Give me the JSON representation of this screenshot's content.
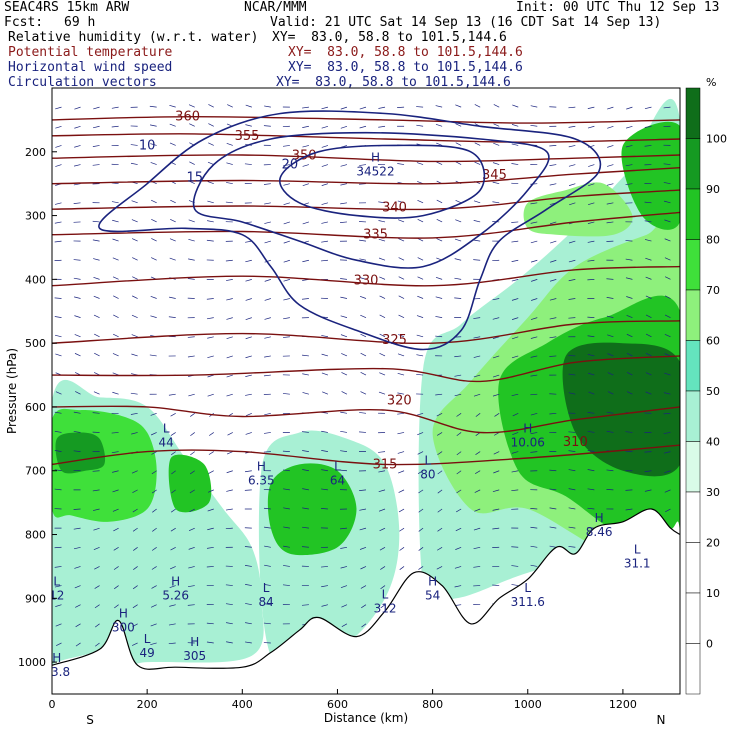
{
  "header": {
    "model": "SEAC4RS 15km ARW",
    "org": "NCAR/MMM",
    "init": "Init: 00 UTC Thu 12 Sep 13",
    "fcst_label": "Fcst:",
    "fcst_value": "69 h",
    "valid": "Valid: 21 UTC Sat 14 Sep 13 (16 CDT Sat 14 Sep 13)",
    "fields": [
      {
        "name": "Relative humidity (w.r.t. water)",
        "xy": "XY=  83.0, 58.8 to 101.5,144.6",
        "color": "#000000"
      },
      {
        "name": "Potential temperature",
        "xy": "XY=  83.0, 58.8 to 101.5,144.6",
        "color": "#8b1a1a"
      },
      {
        "name": "Horizontal wind speed",
        "xy": "XY=  83.0, 58.8 to 101.5,144.6",
        "color": "#1a237e"
      },
      {
        "name": "Circulation vectors",
        "xy": "XY=  83.0, 58.8 to 101.5,144.6",
        "color": "#1a237e"
      }
    ]
  },
  "chart_data": {
    "type": "heatmap",
    "title": "",
    "xlabel": "Distance (km)",
    "ylabel": "Pressure (hPa)",
    "xlim": [
      0,
      1320
    ],
    "ylim": [
      1050,
      100
    ],
    "x_ticks": [
      0,
      200,
      400,
      600,
      800,
      1000,
      1200
    ],
    "y_ticks": [
      200,
      300,
      400,
      500,
      600,
      700,
      800,
      900,
      1000
    ],
    "end_labels": {
      "left": "S",
      "right": "N"
    },
    "colorbar": {
      "unit": "%",
      "ticks": [
        0,
        10,
        20,
        30,
        40,
        50,
        60,
        70,
        80,
        90,
        100
      ],
      "levels": [
        {
          "from": -10,
          "to": 0,
          "color": "#ffffff"
        },
        {
          "from": 0,
          "to": 10,
          "color": "#ffffff"
        },
        {
          "from": 10,
          "to": 20,
          "color": "#ffffff"
        },
        {
          "from": 20,
          "to": 30,
          "color": "#ffffff"
        },
        {
          "from": 30,
          "to": 40,
          "color": "#d9fbe8"
        },
        {
          "from": 40,
          "to": 50,
          "color": "#a8f0d4"
        },
        {
          "from": 50,
          "to": 60,
          "color": "#64e4be"
        },
        {
          "from": 60,
          "to": 70,
          "color": "#8ef07c"
        },
        {
          "from": 70,
          "to": 80,
          "color": "#3fe03a"
        },
        {
          "from": 80,
          "to": 90,
          "color": "#22c424"
        },
        {
          "from": 90,
          "to": 100,
          "color": "#159a22"
        },
        {
          "from": 100,
          "to": 110,
          "color": "#0f6e1a"
        }
      ]
    },
    "rh_regions": [
      {
        "level": 40,
        "points": [
          [
            0,
            590
          ],
          [
            100,
            585
          ],
          [
            200,
            600
          ],
          [
            280,
            680
          ],
          [
            360,
            760
          ],
          [
            420,
            820
          ],
          [
            440,
            900
          ],
          [
            420,
            990
          ],
          [
            200,
            1000
          ],
          [
            0,
            1000
          ]
        ]
      },
      {
        "level": 70,
        "points": [
          [
            0,
            620
          ],
          [
            60,
            605
          ],
          [
            150,
            615
          ],
          [
            200,
            640
          ],
          [
            220,
            700
          ],
          [
            200,
            760
          ],
          [
            120,
            780
          ],
          [
            40,
            770
          ],
          [
            0,
            760
          ]
        ]
      },
      {
        "level": 90,
        "points": [
          [
            10,
            650
          ],
          [
            60,
            640
          ],
          [
            100,
            650
          ],
          [
            110,
            690
          ],
          [
            70,
            700
          ],
          [
            20,
            700
          ]
        ]
      },
      {
        "level": 80,
        "points": [
          [
            250,
            680
          ],
          [
            320,
            690
          ],
          [
            330,
            750
          ],
          [
            260,
            760
          ]
        ]
      },
      {
        "level": 40,
        "points": [
          [
            440,
            700
          ],
          [
            520,
            640
          ],
          [
            620,
            650
          ],
          [
            700,
            690
          ],
          [
            730,
            800
          ],
          [
            700,
            900
          ],
          [
            600,
            980
          ],
          [
            460,
            990
          ]
        ]
      },
      {
        "level": 80,
        "points": [
          [
            460,
            720
          ],
          [
            520,
            690
          ],
          [
            600,
            700
          ],
          [
            640,
            760
          ],
          [
            600,
            820
          ],
          [
            500,
            830
          ],
          [
            460,
            790
          ]
        ]
      },
      {
        "level": 40,
        "points": [
          [
            780,
            540
          ],
          [
            860,
            470
          ],
          [
            980,
            400
          ],
          [
            1100,
            320
          ],
          [
            1200,
            240
          ],
          [
            1320,
            150
          ],
          [
            1320,
            850
          ],
          [
            1200,
            820
          ],
          [
            1000,
            860
          ],
          [
            850,
            900
          ],
          [
            780,
            880
          ]
        ]
      },
      {
        "level": 60,
        "points": [
          [
            800,
            640
          ],
          [
            880,
            560
          ],
          [
            1000,
            460
          ],
          [
            1100,
            380
          ],
          [
            1250,
            330
          ],
          [
            1320,
            320
          ],
          [
            1320,
            820
          ],
          [
            1180,
            830
          ],
          [
            1000,
            760
          ],
          [
            880,
            760
          ]
        ]
      },
      {
        "level": 80,
        "points": [
          [
            940,
            560
          ],
          [
            1040,
            500
          ],
          [
            1160,
            460
          ],
          [
            1320,
            450
          ],
          [
            1320,
            800
          ],
          [
            1200,
            800
          ],
          [
            1080,
            740
          ],
          [
            980,
            700
          ]
        ]
      },
      {
        "level": 100,
        "points": [
          [
            1080,
            520
          ],
          [
            1200,
            500
          ],
          [
            1320,
            530
          ],
          [
            1320,
            690
          ],
          [
            1200,
            700
          ],
          [
            1100,
            640
          ]
        ]
      },
      {
        "level": 60,
        "points": [
          [
            1000,
            280
          ],
          [
            1080,
            260
          ],
          [
            1160,
            250
          ],
          [
            1220,
            300
          ],
          [
            1180,
            330
          ],
          [
            1060,
            330
          ],
          [
            1000,
            320
          ]
        ]
      },
      {
        "level": 80,
        "points": [
          [
            1200,
            190
          ],
          [
            1320,
            160
          ],
          [
            1320,
            310
          ],
          [
            1240,
            300
          ]
        ]
      }
    ],
    "theta_isentropes": [
      {
        "value": 360,
        "points": [
          [
            0,
            150
          ],
          [
            300,
            145
          ],
          [
            700,
            150
          ],
          [
            1000,
            155
          ],
          [
            1320,
            150
          ]
        ],
        "label": {
          "x": 285,
          "p": 145,
          "text": "360"
        }
      },
      {
        "value": 355,
        "points": [
          [
            0,
            175
          ],
          [
            300,
            172
          ],
          [
            700,
            180
          ],
          [
            1000,
            185
          ],
          [
            1320,
            180
          ]
        ],
        "label": {
          "x": 410,
          "p": 175,
          "text": "355"
        }
      },
      {
        "value": 350,
        "points": [
          [
            0,
            210
          ],
          [
            400,
            205
          ],
          [
            800,
            215
          ],
          [
            1100,
            210
          ],
          [
            1320,
            205
          ]
        ],
        "label": {
          "x": 530,
          "p": 206,
          "text": "350"
        }
      },
      {
        "value": 345,
        "points": [
          [
            0,
            250
          ],
          [
            400,
            245
          ],
          [
            800,
            250
          ],
          [
            1100,
            235
          ],
          [
            1320,
            225
          ]
        ],
        "label": {
          "x": 930,
          "p": 236,
          "text": "345"
        }
      },
      {
        "value": 340,
        "points": [
          [
            0,
            290
          ],
          [
            400,
            285
          ],
          [
            800,
            290
          ],
          [
            1100,
            270
          ],
          [
            1320,
            260
          ]
        ],
        "label": {
          "x": 720,
          "p": 287,
          "text": "340"
        }
      },
      {
        "value": 335,
        "points": [
          [
            0,
            330
          ],
          [
            400,
            325
          ],
          [
            800,
            335
          ],
          [
            1100,
            310
          ],
          [
            1320,
            295
          ]
        ],
        "label": {
          "x": 680,
          "p": 330,
          "text": "335"
        }
      },
      {
        "value": 330,
        "points": [
          [
            0,
            410
          ],
          [
            400,
            395
          ],
          [
            800,
            410
          ],
          [
            1100,
            385
          ],
          [
            1320,
            380
          ]
        ],
        "label": {
          "x": 660,
          "p": 402,
          "text": "330"
        }
      },
      {
        "value": 325,
        "points": [
          [
            0,
            500
          ],
          [
            400,
            485
          ],
          [
            800,
            500
          ],
          [
            1100,
            470
          ],
          [
            1320,
            465
          ]
        ],
        "label": {
          "x": 720,
          "p": 495,
          "text": "325"
        }
      },
      {
        "value": 320,
        "points": [
          [
            0,
            550
          ],
          [
            300,
            550
          ],
          [
            700,
            540
          ],
          [
            900,
            560
          ],
          [
            1100,
            530
          ],
          [
            1320,
            520
          ]
        ],
        "label": {
          "x": 730,
          "p": 590,
          "text": "320"
        }
      },
      {
        "value": 315,
        "points": [
          [
            0,
            600
          ],
          [
            200,
            600
          ],
          [
            400,
            615
          ],
          [
            700,
            605
          ],
          [
            900,
            640
          ],
          [
            1100,
            620
          ],
          [
            1320,
            600
          ]
        ],
        "label": {
          "x": 700,
          "p": 690,
          "text": "315"
        }
      },
      {
        "value": 310,
        "points": [
          [
            0,
            690
          ],
          [
            200,
            670
          ],
          [
            400,
            670
          ],
          [
            700,
            690
          ],
          [
            1000,
            680
          ],
          [
            1320,
            660
          ]
        ],
        "label": {
          "x": 1100,
          "p": 655,
          "text": "310"
        }
      }
    ],
    "isotach_contours": [
      {
        "value": 10,
        "points": [
          [
            100,
            320
          ],
          [
            200,
            250
          ],
          [
            320,
            180
          ],
          [
            480,
            140
          ],
          [
            700,
            140
          ],
          [
            900,
            160
          ],
          [
            1100,
            180
          ],
          [
            1150,
            230
          ],
          [
            1040,
            290
          ],
          [
            940,
            340
          ],
          [
            900,
            400
          ],
          [
            860,
            480
          ],
          [
            780,
            510
          ],
          [
            640,
            480
          ],
          [
            520,
            440
          ],
          [
            460,
            380
          ],
          [
            400,
            330
          ],
          [
            280,
            320
          ]
        ],
        "label": {
          "x": 200,
          "p": 190,
          "text": "10"
        }
      },
      {
        "value": 15,
        "points": [
          [
            300,
            290
          ],
          [
            340,
            220
          ],
          [
            460,
            180
          ],
          [
            660,
            170
          ],
          [
            900,
            180
          ],
          [
            1040,
            200
          ],
          [
            1000,
            260
          ],
          [
            900,
            330
          ],
          [
            780,
            380
          ],
          [
            640,
            370
          ],
          [
            520,
            340
          ],
          [
            400,
            310
          ]
        ],
        "label": {
          "x": 300,
          "p": 240,
          "text": "15"
        }
      },
      {
        "value": 20,
        "points": [
          [
            480,
            240
          ],
          [
            560,
            200
          ],
          [
            720,
            190
          ],
          [
            880,
            200
          ],
          [
            900,
            260
          ],
          [
            780,
            300
          ],
          [
            640,
            300
          ],
          [
            520,
            280
          ]
        ],
        "label": {
          "x": 500,
          "p": 220,
          "text": "20"
        }
      }
    ],
    "hl_markers": [
      {
        "kind": "H",
        "x": 680,
        "p": 215,
        "value": "34522"
      },
      {
        "kind": "L",
        "x": 240,
        "p": 640,
        "value": "44"
      },
      {
        "kind": "H",
        "x": 440,
        "p": 700,
        "value": "6.35"
      },
      {
        "kind": "L",
        "x": 600,
        "p": 700,
        "value": "64"
      },
      {
        "kind": "L",
        "x": 790,
        "p": 690,
        "value": "80"
      },
      {
        "kind": "H",
        "x": 1000,
        "p": 640,
        "value": "10.06"
      },
      {
        "kind": "H",
        "x": 1150,
        "p": 780,
        "value": "8.46"
      },
      {
        "kind": "L",
        "x": 1230,
        "p": 830,
        "value": "31.1"
      },
      {
        "kind": "H",
        "x": 260,
        "p": 880,
        "value": "5.26"
      },
      {
        "kind": "L",
        "x": 450,
        "p": 890,
        "value": "84"
      },
      {
        "kind": "L",
        "x": 700,
        "p": 900,
        "value": "312"
      },
      {
        "kind": "H",
        "x": 800,
        "p": 880,
        "value": "54"
      },
      {
        "kind": "L",
        "x": 1000,
        "p": 890,
        "value": "311.6"
      },
      {
        "kind": "L",
        "x": 10,
        "p": 880,
        "value": "12"
      },
      {
        "kind": "H",
        "x": 150,
        "p": 930,
        "value": "300"
      },
      {
        "kind": "L",
        "x": 200,
        "p": 970,
        "value": "49"
      },
      {
        "kind": "H",
        "x": 300,
        "p": 975,
        "value": "305"
      },
      {
        "kind": "H",
        "x": 10,
        "p": 1000,
        "value": "03.8"
      }
    ],
    "terrain": [
      [
        0,
        1005
      ],
      [
        100,
        980
      ],
      [
        140,
        935
      ],
      [
        180,
        1005
      ],
      [
        260,
        1008
      ],
      [
        400,
        1008
      ],
      [
        460,
        985
      ],
      [
        520,
        950
      ],
      [
        560,
        930
      ],
      [
        640,
        960
      ],
      [
        700,
        920
      ],
      [
        760,
        860
      ],
      [
        820,
        880
      ],
      [
        880,
        940
      ],
      [
        940,
        900
      ],
      [
        1000,
        870
      ],
      [
        1060,
        820
      ],
      [
        1100,
        830
      ],
      [
        1140,
        790
      ],
      [
        1200,
        780
      ],
      [
        1260,
        760
      ],
      [
        1300,
        790
      ],
      [
        1320,
        800
      ]
    ]
  }
}
